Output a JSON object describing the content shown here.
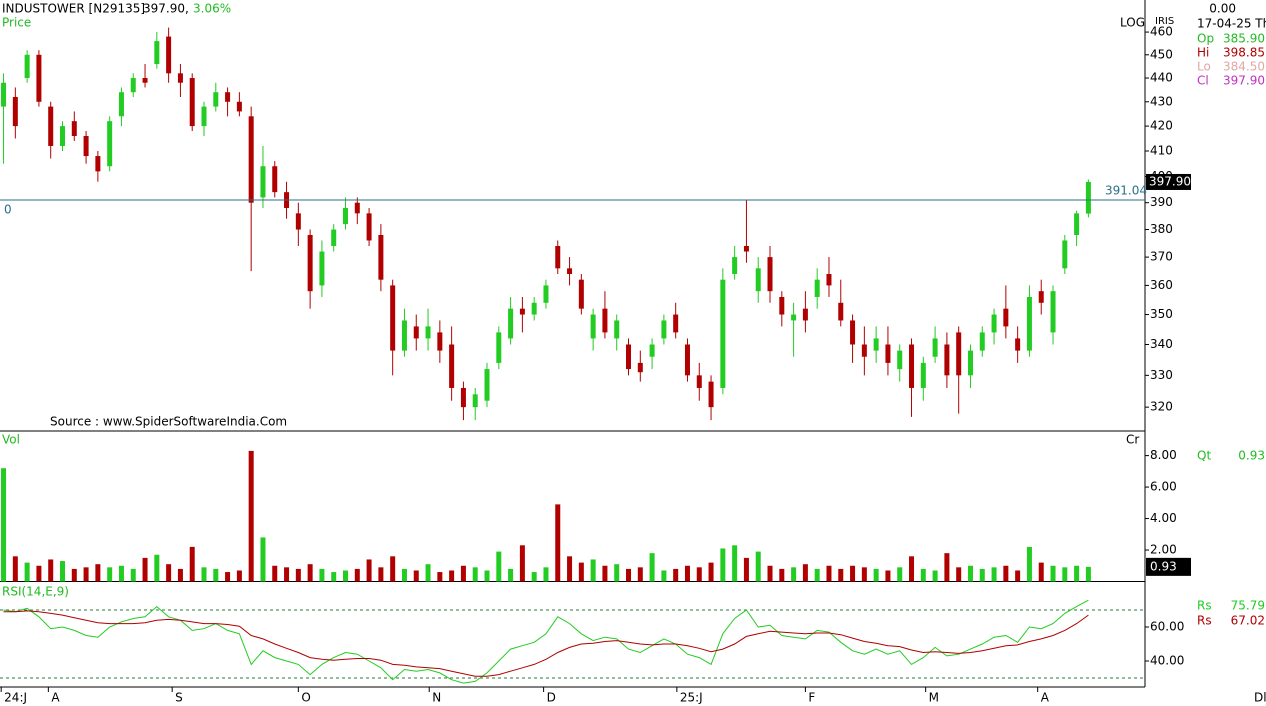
{
  "info": {
    "last": "0.00",
    "date": "17-04-25 Th",
    "ohlc": [
      {
        "label": "Op",
        "value": "385.90"
      },
      {
        "label": "Hi",
        "value": "398.85"
      },
      {
        "label": "Lo",
        "value": "384.50"
      },
      {
        "label": "Cl",
        "value": "397.90"
      }
    ]
  },
  "chart_data": [
    {
      "type": "candlestick",
      "title": "INDUSTOWER [N29135]",
      "last": "397.90,",
      "change": "3.06%",
      "ylabel": "Price",
      "scale_label": "LOG",
      "indicator_label": "IRIS",
      "source": "Source : www.SpiderSoftwareIndia.Com",
      "log_scale": true,
      "ylim": [
        312.7,
        474.5
      ],
      "yticks": [
        320,
        330,
        340,
        350,
        360,
        370,
        380,
        390,
        400,
        410,
        420,
        430,
        440,
        450,
        460
      ],
      "xlim": [
        -0.3,
        96.8
      ],
      "up_color": "#22cc22",
      "down_color": "#b00000",
      "hline": {
        "value": 391.04,
        "label": "391.04"
      },
      "hline_left_label": "0",
      "last_price": {
        "value": 397.9,
        "label": "397.90"
      },
      "candles": [
        [
          428,
          442,
          405,
          438
        ],
        [
          432,
          436,
          415,
          420
        ],
        [
          440,
          452,
          438,
          450
        ],
        [
          450,
          452,
          428,
          430
        ],
        [
          428,
          430,
          407,
          412
        ],
        [
          412,
          422,
          410,
          420
        ],
        [
          422,
          426,
          414,
          416
        ],
        [
          416,
          418,
          405,
          408
        ],
        [
          408,
          410,
          398,
          402
        ],
        [
          404,
          424,
          402,
          422
        ],
        [
          424,
          436,
          420,
          434
        ],
        [
          434,
          442,
          432,
          440
        ],
        [
          440,
          446,
          436,
          438
        ],
        [
          446,
          460,
          444,
          456
        ],
        [
          458,
          462,
          438,
          442
        ],
        [
          442,
          446,
          432,
          438
        ],
        [
          440,
          442,
          418,
          420
        ],
        [
          420,
          430,
          416,
          428
        ],
        [
          428,
          438,
          426,
          434
        ],
        [
          434,
          436,
          424,
          430
        ],
        [
          430,
          434,
          424,
          426
        ],
        [
          424,
          428,
          365,
          390
        ],
        [
          392,
          412,
          388,
          404
        ],
        [
          404,
          406,
          392,
          394
        ],
        [
          394,
          398,
          384,
          388
        ],
        [
          386,
          390,
          374,
          380
        ],
        [
          378,
          380,
          352,
          358
        ],
        [
          360,
          376,
          356,
          372
        ],
        [
          374,
          382,
          372,
          380
        ],
        [
          382,
          392,
          380,
          388
        ],
        [
          390,
          392,
          382,
          386
        ],
        [
          386,
          388,
          374,
          376
        ],
        [
          378,
          382,
          358,
          362
        ],
        [
          360,
          362,
          330,
          338
        ],
        [
          338,
          352,
          336,
          348
        ],
        [
          346,
          350,
          338,
          342
        ],
        [
          342,
          352,
          338,
          346
        ],
        [
          344,
          348,
          334,
          338
        ],
        [
          340,
          346,
          322,
          326
        ],
        [
          326,
          328,
          316,
          320
        ],
        [
          320,
          326,
          316,
          324
        ],
        [
          322,
          334,
          320,
          332
        ],
        [
          334,
          346,
          332,
          344
        ],
        [
          342,
          356,
          340,
          352
        ],
        [
          352,
          356,
          344,
          350
        ],
        [
          350,
          356,
          348,
          354
        ],
        [
          354,
          362,
          352,
          360
        ],
        [
          374,
          376,
          364,
          366
        ],
        [
          366,
          370,
          360,
          364
        ],
        [
          362,
          364,
          350,
          352
        ],
        [
          342,
          352,
          338,
          350
        ],
        [
          352,
          358,
          342,
          344
        ],
        [
          342,
          350,
          338,
          348
        ],
        [
          340,
          342,
          330,
          332
        ],
        [
          334,
          338,
          328,
          331
        ],
        [
          336,
          342,
          332,
          340
        ],
        [
          342,
          350,
          340,
          348
        ],
        [
          350,
          354,
          342,
          344
        ],
        [
          340,
          342,
          328,
          330
        ],
        [
          330,
          334,
          322,
          326
        ],
        [
          328,
          330,
          316,
          320
        ],
        [
          326,
          366,
          324,
          362
        ],
        [
          364,
          374,
          362,
          370
        ],
        [
          374,
          391,
          368,
          372
        ],
        [
          358,
          370,
          354,
          366
        ],
        [
          370,
          374,
          354,
          358
        ],
        [
          356,
          358,
          346,
          350
        ],
        [
          348,
          354,
          336,
          350
        ],
        [
          352,
          358,
          344,
          348
        ],
        [
          356,
          366,
          352,
          362
        ],
        [
          364,
          370,
          356,
          360
        ],
        [
          354,
          362,
          346,
          348
        ],
        [
          348,
          350,
          334,
          340
        ],
        [
          340,
          346,
          330,
          336
        ],
        [
          338,
          346,
          334,
          342
        ],
        [
          340,
          346,
          330,
          334
        ],
        [
          332,
          340,
          328,
          338
        ],
        [
          340,
          342,
          317,
          326
        ],
        [
          326,
          336,
          322,
          334
        ],
        [
          336,
          346,
          334,
          342
        ],
        [
          340,
          344,
          326,
          330
        ],
        [
          344,
          346,
          318,
          330
        ],
        [
          330,
          340,
          326,
          338
        ],
        [
          338,
          346,
          336,
          344
        ],
        [
          344,
          352,
          340,
          350
        ],
        [
          352,
          360,
          342,
          346
        ],
        [
          342,
          346,
          334,
          338
        ],
        [
          338,
          360,
          336,
          356
        ],
        [
          358,
          362,
          350,
          354
        ],
        [
          344,
          360,
          340,
          358
        ],
        [
          366,
          378,
          364,
          376
        ],
        [
          378,
          387,
          374,
          386
        ],
        [
          385.9,
          398.85,
          384.5,
          397.9
        ]
      ]
    },
    {
      "type": "bar",
      "ylabel": "Vol",
      "unit": "Cr",
      "ylim": [
        0,
        9.5
      ],
      "yticks": [
        {
          "value": 2,
          "label": "2.00"
        },
        {
          "value": 4,
          "label": "4.00"
        },
        {
          "value": 6,
          "label": "6.00"
        },
        {
          "value": 8,
          "label": "8.00"
        }
      ],
      "xlim": [
        -0.3,
        96.8
      ],
      "legend": {
        "name": "Qt",
        "value": "0.93"
      },
      "last_value": {
        "value": 0.93,
        "label": "0.93"
      },
      "values": [
        7.2,
        1.6,
        1.2,
        1.0,
        1.4,
        1.3,
        0.8,
        0.9,
        1.1,
        0.9,
        1.0,
        0.8,
        1.5,
        1.7,
        1.1,
        0.8,
        2.2,
        0.9,
        0.8,
        0.6,
        0.7,
        8.3,
        2.8,
        1.0,
        0.9,
        0.8,
        1.1,
        0.8,
        0.6,
        0.7,
        0.8,
        1.4,
        0.9,
        1.6,
        0.8,
        0.7,
        1.1,
        0.6,
        0.7,
        1.0,
        0.9,
        0.7,
        1.9,
        0.8,
        2.3,
        0.6,
        0.9,
        4.9,
        1.6,
        1.2,
        1.4,
        1.0,
        1.1,
        0.8,
        0.9,
        1.8,
        0.7,
        0.8,
        1.0,
        0.9,
        1.2,
        2.1,
        2.3,
        1.5,
        1.9,
        1.0,
        0.8,
        0.9,
        1.1,
        0.8,
        1.0,
        0.8,
        1.0,
        0.9,
        0.8,
        0.7,
        0.9,
        1.6,
        0.8,
        0.7,
        1.8,
        0.9,
        1.0,
        0.8,
        0.9,
        1.0,
        0.7,
        2.2,
        1.2,
        1.0,
        0.9,
        1.0,
        0.93
      ]
    },
    {
      "type": "line",
      "title": "RSI(14,E,9)",
      "ylim": [
        24.7,
        85.9
      ],
      "yticks": [
        {
          "value": 40,
          "label": "40.00"
        },
        {
          "value": 60,
          "label": "60.00"
        }
      ],
      "levels": [
        30,
        70
      ],
      "xlim": [
        -0.3,
        96.8
      ],
      "period_label": "Dly",
      "xticks": [
        {
          "value": -0.2,
          "label": "24:J"
        },
        {
          "value": 3.8,
          "label": "A"
        },
        {
          "value": 14.3,
          "label": "S"
        },
        {
          "value": 25,
          "label": "O"
        },
        {
          "value": 36.1,
          "label": "N"
        },
        {
          "value": 45.8,
          "label": "D"
        },
        {
          "value": 57.1,
          "label": "25:J"
        },
        {
          "value": 68,
          "label": "F"
        },
        {
          "value": 78.2,
          "label": "M"
        },
        {
          "value": 87.7,
          "label": "A"
        }
      ],
      "series": [
        {
          "name": "Rs",
          "color": "#22cc22",
          "value_label": "75.79",
          "values": [
            70,
            69,
            71,
            66,
            59,
            60,
            58,
            55,
            54,
            60,
            63,
            65,
            66,
            72,
            66,
            64,
            58,
            59,
            62,
            58,
            56,
            38,
            46,
            42,
            40,
            38,
            32,
            38,
            42,
            45,
            44,
            40,
            36,
            29,
            35,
            34,
            35,
            33,
            29,
            27,
            28,
            33,
            40,
            47,
            49,
            51,
            56,
            66,
            62,
            56,
            52,
            54,
            53,
            47,
            45,
            49,
            53,
            50,
            44,
            42,
            38,
            56,
            65,
            70,
            60,
            61,
            55,
            54,
            53,
            58,
            57,
            51,
            46,
            44,
            47,
            44,
            46,
            38,
            42,
            48,
            43,
            44,
            47,
            50,
            54,
            55,
            51,
            60,
            59,
            62,
            68,
            72,
            75.79
          ]
        },
        {
          "name": "Rs",
          "color": "#b00000",
          "value_label": "67.02",
          "values": [
            69,
            69,
            69.5,
            69,
            68,
            67,
            65.5,
            64,
            62.5,
            62,
            62,
            62,
            62.5,
            64,
            64.5,
            64,
            63,
            62,
            62,
            61.5,
            60.5,
            55,
            53,
            50,
            47.5,
            45,
            42,
            41,
            40.5,
            41,
            41.5,
            41.5,
            40.5,
            38,
            37.5,
            36.5,
            36,
            35.5,
            34,
            32.5,
            31,
            31,
            32,
            34,
            36,
            38,
            41,
            45,
            48,
            50,
            50.5,
            51.5,
            52,
            51,
            50,
            49.5,
            50,
            50,
            49,
            47.5,
            45.5,
            47,
            50,
            54.5,
            56,
            57.5,
            57,
            56.5,
            56,
            56.5,
            56.5,
            55.5,
            53.5,
            51.5,
            50.5,
            49,
            48.5,
            46.5,
            45,
            45.5,
            45,
            44.5,
            45,
            46,
            47.5,
            49,
            49.5,
            51.5,
            53,
            55,
            58,
            62,
            67.02
          ]
        }
      ]
    }
  ]
}
